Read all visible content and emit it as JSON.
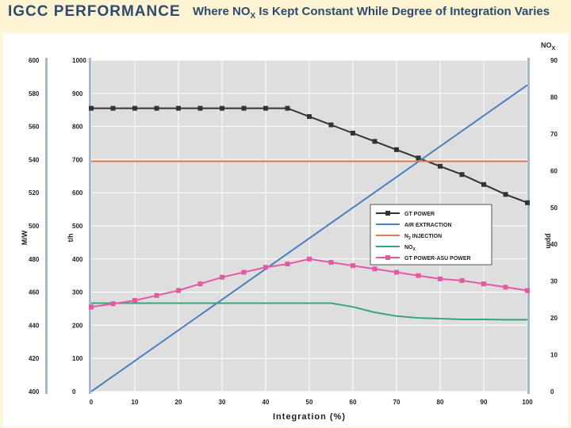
{
  "header": {
    "brand": "IGCC PERFORMANCE",
    "subtitle_pre": "Where NO",
    "subtitle_sub": "X",
    "subtitle_post": " Is Kept Constant While Degree of Integration Varies"
  },
  "colors": {
    "gt_power": "#333333",
    "air_extraction": "#4a7fc0",
    "n2_injection": "#e07a50",
    "nox": "#3aa57a",
    "gt_asu": "#e15aa5"
  },
  "chart_data": {
    "type": "line",
    "xlabel": "Integration (%)",
    "x_ticks": [
      "0",
      "10",
      "20",
      "30",
      "40",
      "50",
      "60",
      "70",
      "80",
      "90",
      "100"
    ],
    "xlim": [
      0,
      100
    ],
    "axes": {
      "mw": {
        "label": "M/W",
        "range": [
          400,
          600
        ],
        "ticks": [
          "400",
          "420",
          "440",
          "460",
          "480",
          "500",
          "520",
          "540",
          "560",
          "580",
          "600"
        ]
      },
      "th": {
        "label": "t/h",
        "range": [
          0,
          1000
        ],
        "ticks": [
          "0",
          "100",
          "200",
          "300",
          "400",
          "500",
          "600",
          "700",
          "800",
          "900",
          "1000"
        ]
      },
      "ppm": {
        "label": "ppm",
        "title_pre": "NO",
        "title_sub": "X",
        "range": [
          0,
          90
        ],
        "ticks": [
          "0",
          "10",
          "20",
          "30",
          "40",
          "50",
          "60",
          "70",
          "80",
          "90"
        ]
      }
    },
    "series": [
      {
        "name": "GT POWER",
        "axis": "mw",
        "colorKey": "gt_power",
        "marker": "square",
        "x": [
          0,
          5,
          10,
          15,
          20,
          25,
          30,
          35,
          40,
          45,
          50,
          55,
          60,
          65,
          70,
          75,
          80,
          85,
          90,
          95,
          100
        ],
        "y": [
          571,
          571,
          571,
          571,
          571,
          571,
          571,
          571,
          571,
          571,
          566,
          561,
          556,
          551,
          546,
          541,
          536,
          531,
          525,
          519,
          514
        ]
      },
      {
        "name": "AIR EXTRACTION",
        "axis": "th",
        "colorKey": "air_extraction",
        "marker": "none",
        "x": [
          0,
          100
        ],
        "y": [
          0,
          925
        ]
      },
      {
        "name": "N2 INJECTION",
        "axis": "th",
        "colorKey": "n2_injection",
        "marker": "none",
        "x": [
          0,
          100
        ],
        "y": [
          695,
          695
        ]
      },
      {
        "name": "NOX",
        "axis": "ppm",
        "colorKey": "nox",
        "marker": "none",
        "x": [
          0,
          10,
          20,
          30,
          40,
          50,
          55,
          60,
          65,
          70,
          75,
          80,
          85,
          90,
          95,
          100
        ],
        "y": [
          24,
          24,
          24,
          24,
          24,
          24,
          24,
          23,
          21.5,
          20.5,
          20,
          19.8,
          19.6,
          19.6,
          19.5,
          19.5
        ]
      },
      {
        "name": "GT POWER-ASU POWER",
        "axis": "mw",
        "colorKey": "gt_asu",
        "marker": "square",
        "x": [
          0,
          5,
          10,
          15,
          20,
          25,
          30,
          35,
          40,
          45,
          50,
          55,
          60,
          65,
          70,
          75,
          80,
          85,
          90,
          95,
          100
        ],
        "y": [
          451,
          453,
          455,
          458,
          461,
          465,
          469,
          472,
          475,
          477,
          480,
          478,
          476,
          474,
          472,
          470,
          468,
          467,
          465,
          463,
          461
        ]
      }
    ],
    "legend": [
      {
        "label": "GT POWER",
        "colorKey": "gt_power",
        "marker": "square"
      },
      {
        "label": "AIR EXTRACTION",
        "colorKey": "air_extraction",
        "marker": "none"
      },
      {
        "label_pre": "N",
        "label_sub": "2",
        "label_post": " INJECTION",
        "colorKey": "n2_injection",
        "marker": "none"
      },
      {
        "label_pre": "NO",
        "label_sub": "X",
        "label_post": "",
        "colorKey": "nox",
        "marker": "none"
      },
      {
        "label": "GT POWER-ASU POWER",
        "colorKey": "gt_asu",
        "marker": "square"
      }
    ]
  }
}
